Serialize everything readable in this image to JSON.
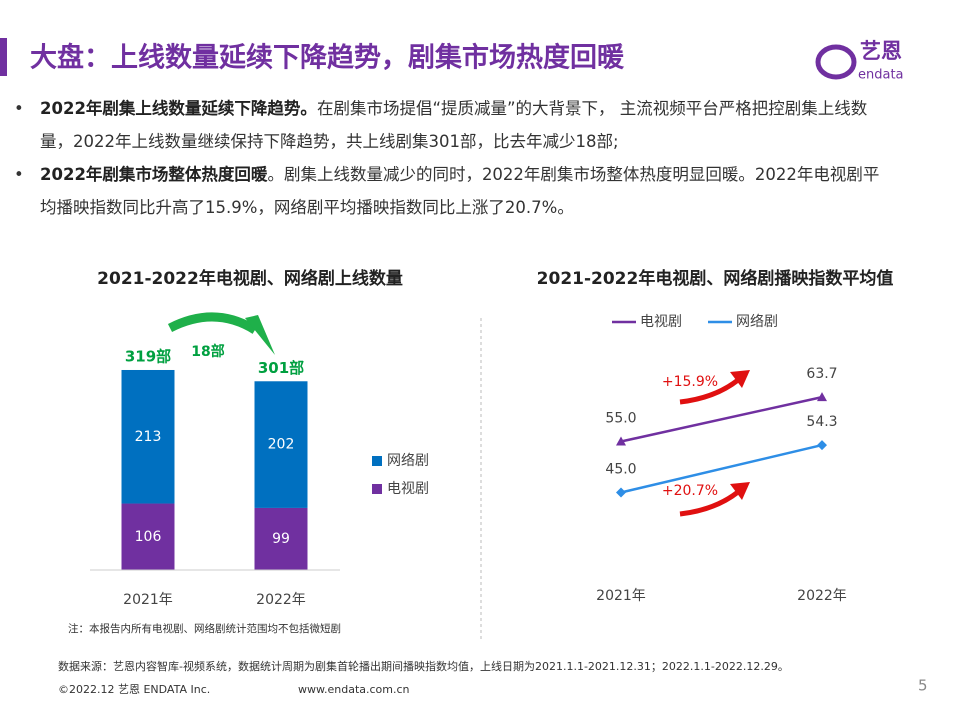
{
  "header": {
    "title": "大盘：上线数量延续下降趋势，剧集市场热度回暖",
    "logo_cn": "艺恩",
    "logo_en": "endata"
  },
  "bullets": [
    {
      "bold": "2022年剧集上线数量延续下降趋势。",
      "text": "在剧集市场提倡“提质减量”的大背景下， 主流视频平台严格把控剧集上线数量，2022年上线数量继续保持下降趋势，共上线剧集301部，比去年减少18部;"
    },
    {
      "bold": "2022年剧集市场整体热度回暖",
      "text": "。剧集上线数量减少的同时，2022年剧集市场整体热度明显回暖。2022年电视剧平均播映指数同比升高了15.9%，网络剧平均播映指数同比上涨了20.7%。"
    }
  ],
  "chart_data": [
    {
      "type": "stacked_bar",
      "title": "2021-2022年电视剧、网络剧上线数量",
      "categories": [
        "2021年",
        "2022年"
      ],
      "series": [
        {
          "name": "电视剧",
          "color": "#7030a0",
          "values": [
            106,
            99
          ]
        },
        {
          "name": "网络剧",
          "color": "#0070c0",
          "values": [
            213,
            202
          ]
        }
      ],
      "total_labels": [
        "319部",
        "301部"
      ],
      "annotations": [
        "18部"
      ],
      "note": "注：本报告内所有电视剧、网络剧统计范围均不包括微短剧"
    },
    {
      "type": "line",
      "title": "2021-2022年电视剧、网络剧播映指数平均值",
      "categories": [
        "2021年",
        "2022年"
      ],
      "series": [
        {
          "name": "电视剧",
          "color": "#7030a0",
          "marker": "triangle",
          "values": [
            55.0,
            63.7
          ],
          "value_labels": [
            "55.0",
            "63.7"
          ]
        },
        {
          "name": "网络剧",
          "color": "#2e8ee6",
          "marker": "diamond",
          "values": [
            45.0,
            54.3
          ],
          "value_labels": [
            "45.0",
            "54.3"
          ]
        }
      ],
      "annotations": [
        "+15.9%",
        "+20.7%"
      ]
    }
  ],
  "footer": {
    "source": "数据来源：艺恩内容智库-视频系统，数据统计周期为剧集首轮播出期间播映指数均值，上线日期为2021.1.1-2021.12.31；2022.1.1-2022.12.29。",
    "copyright": "©2022.12 艺恩 ENDATA Inc.",
    "website": "www.endata.com.cn",
    "page": "5"
  }
}
